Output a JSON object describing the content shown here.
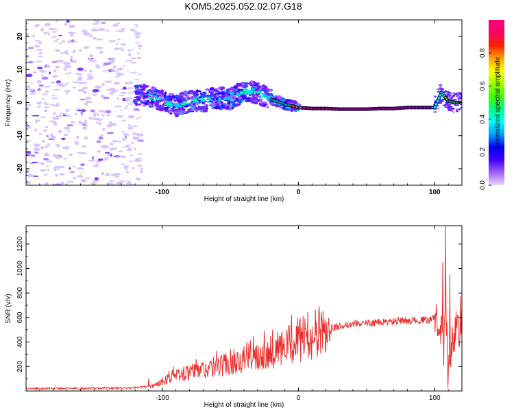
{
  "title": "KOM5.2025.052.02.07.G18",
  "chart_data": [
    {
      "type": "heatmap",
      "xlabel": "Height of straight line (km)",
      "ylabel": "Frequency (Hz)",
      "xlim": [
        -200,
        120
      ],
      "ylim": [
        -25,
        25
      ],
      "xticks": [
        -100,
        0,
        100
      ],
      "yticks": [
        -20,
        -10,
        0,
        10,
        20
      ],
      "colorbar": {
        "label": "Normalized spectral amplitude",
        "ticks": [
          "0.0",
          "0.2",
          "0.4",
          "0.6",
          "0.8"
        ],
        "range": [
          0,
          1
        ],
        "colors": [
          "#e8d8ff",
          "#a060ff",
          "#4000ff",
          "#0000ff",
          "#00a0ff",
          "#00ffff",
          "#00ff80",
          "#40ff00",
          "#a0ff00",
          "#ffff00",
          "#ffa000",
          "#ff2000",
          "#ff0060",
          "#ff0080"
        ]
      },
      "ridge": {
        "x": [
          -130,
          -120,
          -110,
          -100,
          -90,
          -80,
          -70,
          -60,
          -50,
          -40,
          -30,
          -20,
          -10,
          0,
          10,
          20,
          30,
          40,
          50,
          60,
          70,
          80,
          90,
          100,
          105,
          110,
          115,
          120
        ],
        "y": [
          1.5,
          2.5,
          2.0,
          0.5,
          -1.0,
          0.5,
          0.5,
          1.5,
          1.0,
          3.5,
          3.0,
          1.0,
          -0.5,
          -1.5,
          -1.8,
          -1.8,
          -2.0,
          -2.0,
          -2.0,
          -1.8,
          -1.8,
          -1.5,
          -1.5,
          -1.5,
          3.0,
          0.5,
          0.0,
          0.0
        ]
      }
    },
    {
      "type": "line",
      "xlabel": "Height of straight line (km)",
      "ylabel": "SNR (v/v)",
      "xlim": [
        -200,
        120
      ],
      "ylim": [
        0,
        1350
      ],
      "xticks": [
        -100,
        0,
        100
      ],
      "yticks": [
        200,
        400,
        600,
        800,
        1000,
        1200
      ],
      "color": "#e8302c",
      "envelope": {
        "x": [
          -200,
          -150,
          -120,
          -105,
          -95,
          -80,
          -60,
          -40,
          -25,
          -10,
          0,
          10,
          25,
          40,
          60,
          80,
          95,
          100,
          103,
          106,
          108,
          110,
          113,
          116,
          120
        ],
        "y": [
          20,
          22,
          25,
          45,
          120,
          150,
          200,
          270,
          320,
          350,
          420,
          460,
          520,
          550,
          560,
          575,
          580,
          600,
          650,
          320,
          600,
          120,
          400,
          560,
          580
        ]
      },
      "peaks": [
        {
          "x": -110,
          "y": 100
        },
        {
          "x": -92,
          "y": 200
        },
        {
          "x": -75,
          "y": 260
        },
        {
          "x": -60,
          "y": 330
        },
        {
          "x": -45,
          "y": 320
        },
        {
          "x": -33,
          "y": 450
        },
        {
          "x": -25,
          "y": 490
        },
        {
          "x": -19,
          "y": 500
        },
        {
          "x": -12,
          "y": 480
        },
        {
          "x": -5,
          "y": 620
        },
        {
          "x": 2,
          "y": 520
        },
        {
          "x": 106,
          "y": 1050
        },
        {
          "x": 108,
          "y": 1360
        },
        {
          "x": 111,
          "y": 950
        }
      ]
    }
  ]
}
